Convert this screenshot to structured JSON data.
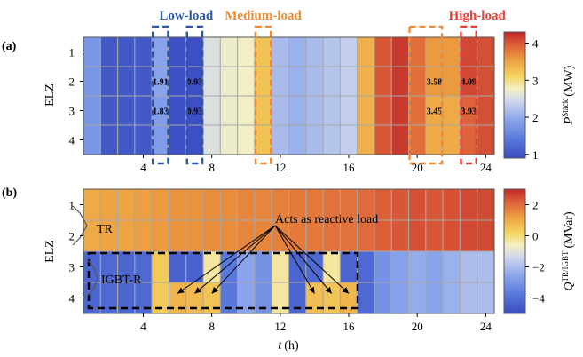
{
  "chart_data": [
    {
      "type": "heatmap",
      "panel_label": "(a)",
      "ylabel": "ELZ",
      "rows": [
        "1",
        "2",
        "3",
        "4"
      ],
      "x": [
        1,
        2,
        3,
        4,
        5,
        6,
        7,
        8,
        9,
        10,
        11,
        12,
        13,
        14,
        15,
        16,
        17,
        18,
        19,
        20,
        21,
        22,
        23,
        24
      ],
      "x_ticks": [
        "4",
        "8",
        "12",
        "16",
        "20",
        "24"
      ],
      "colorbar": {
        "label": "P^Stack (MW)",
        "label_main": "P",
        "label_sup": "Stack",
        "label_unit": "(MW)",
        "min": 0.9,
        "max": 4.3,
        "ticks": [
          "1",
          "2",
          "3",
          "4"
        ]
      },
      "hour_power": [
        1.75,
        1.05,
        1.05,
        1.05,
        1.87,
        0.95,
        0.93,
        2.55,
        2.7,
        2.75,
        3.25,
        2.15,
        2.05,
        2.15,
        2.25,
        2.35,
        3.4,
        4.0,
        4.2,
        3.85,
        3.58,
        3.58,
        4.09,
        4.05
      ],
      "values": [
        [
          1.75,
          1.05,
          1.05,
          1.05,
          1.91,
          0.95,
          0.93,
          2.55,
          2.7,
          2.75,
          3.25,
          2.15,
          2.05,
          2.15,
          2.25,
          2.35,
          3.4,
          4.0,
          4.2,
          3.85,
          3.58,
          3.58,
          4.09,
          4.05
        ],
        [
          1.75,
          1.05,
          1.05,
          1.05,
          1.91,
          0.95,
          0.93,
          2.55,
          2.7,
          2.75,
          3.25,
          2.15,
          2.05,
          2.15,
          2.25,
          2.35,
          3.4,
          4.0,
          4.2,
          3.85,
          3.58,
          3.58,
          4.09,
          4.05
        ],
        [
          1.75,
          1.05,
          1.05,
          1.05,
          1.83,
          0.95,
          0.93,
          2.55,
          2.7,
          2.75,
          3.25,
          2.15,
          2.05,
          2.15,
          2.25,
          2.35,
          3.4,
          4.0,
          4.2,
          3.85,
          3.45,
          3.45,
          3.93,
          4.05
        ],
        [
          1.75,
          1.05,
          1.05,
          1.05,
          1.83,
          0.95,
          0.93,
          2.55,
          2.7,
          2.75,
          3.25,
          2.15,
          2.05,
          2.15,
          2.25,
          2.35,
          3.4,
          4.0,
          4.2,
          3.85,
          3.45,
          3.45,
          3.93,
          4.05
        ]
      ],
      "cell_labels": [
        {
          "row": 2,
          "hour": 5,
          "text": "1.91"
        },
        {
          "row": 2,
          "hour": 7,
          "text": "0.93"
        },
        {
          "row": 3,
          "hour": 5,
          "text": "1.83"
        },
        {
          "row": 3,
          "hour": 7,
          "text": "0.93"
        },
        {
          "row": 2,
          "hour": 21,
          "text": "3.58"
        },
        {
          "row": 2,
          "hour": 23,
          "text": "4.09"
        },
        {
          "row": 3,
          "hour": 21,
          "text": "3.45"
        },
        {
          "row": 3,
          "hour": 23,
          "text": "3.93"
        }
      ],
      "highlights": [
        {
          "label": "Low-load",
          "color": "#2a56a8",
          "hours": [
            5,
            5
          ],
          "label_hours": [
            4.5,
            8.5
          ]
        },
        {
          "label": "",
          "color": "#2a56a8",
          "hours": [
            7,
            7
          ]
        },
        {
          "label": "Medium-load",
          "color": "#ef8a35",
          "hours": [
            11,
            11
          ],
          "label_hours": [
            11,
            11
          ]
        },
        {
          "label": "",
          "color": "#ef8a35",
          "hours": [
            20,
            21
          ]
        },
        {
          "label": "High-load",
          "color": "#e8413a",
          "hours": [
            23,
            23
          ],
          "label_hours": [
            22.2,
            24.8
          ]
        }
      ]
    },
    {
      "type": "heatmap",
      "panel_label": "(b)",
      "ylabel": "ELZ",
      "xlabel": "t (h)",
      "xlabel_main": "t",
      "xlabel_unit": "(h)",
      "rows": [
        "1",
        "2",
        "3",
        "4"
      ],
      "x": [
        1,
        2,
        3,
        4,
        5,
        6,
        7,
        8,
        9,
        10,
        11,
        12,
        13,
        14,
        15,
        16,
        17,
        18,
        19,
        20,
        21,
        22,
        23,
        24
      ],
      "x_ticks": [
        "4",
        "8",
        "12",
        "16",
        "20",
        "24"
      ],
      "colorbar": {
        "label": "Q^TR/IGBT (MVar)",
        "label_main": "Q",
        "label_sup": "TR/IGBT",
        "label_unit": "(MVar)",
        "min": -5,
        "max": 3,
        "ticks": [
          "2",
          "0",
          "−2",
          "−4"
        ],
        "tick_values": [
          2,
          0,
          -2,
          -4
        ]
      },
      "values": [
        [
          1.0,
          1.1,
          1.1,
          1.2,
          1.3,
          1.4,
          1.4,
          1.5,
          1.5,
          1.6,
          1.6,
          1.7,
          1.8,
          1.8,
          1.9,
          1.9,
          2.0,
          2.2,
          2.3,
          2.4,
          2.3,
          2.4,
          2.5,
          2.5
        ],
        [
          1.0,
          1.1,
          1.1,
          1.2,
          1.3,
          1.4,
          1.4,
          1.5,
          1.5,
          1.6,
          1.6,
          1.7,
          1.8,
          1.8,
          1.9,
          1.9,
          2.0,
          2.2,
          2.3,
          2.4,
          2.3,
          2.4,
          2.5,
          2.5
        ],
        [
          -4.3,
          -4.2,
          -4.3,
          -4.2,
          0.4,
          -4.4,
          -4.4,
          -0.3,
          -3.8,
          -2.6,
          -3.1,
          -0.3,
          -4.3,
          -4.2,
          -0.3,
          -4.3,
          -4.2,
          -3.1,
          -2.7,
          -2.4,
          -2.6,
          -2.3,
          -2.0,
          -2.0
        ],
        [
          -4.3,
          -4.2,
          -4.3,
          -4.2,
          0.4,
          0.8,
          0.7,
          0.5,
          -3.8,
          -2.6,
          -3.1,
          -0.3,
          -4.3,
          0.6,
          0.5,
          0.8,
          -4.2,
          -3.1,
          -2.7,
          -2.4,
          -2.6,
          -2.3,
          -2.0,
          -2.0
        ]
      ],
      "annotations": [
        {
          "text": "TR"
        },
        {
          "text": "IGBT-R"
        },
        {
          "text": "Acts as reactive load"
        }
      ]
    }
  ]
}
